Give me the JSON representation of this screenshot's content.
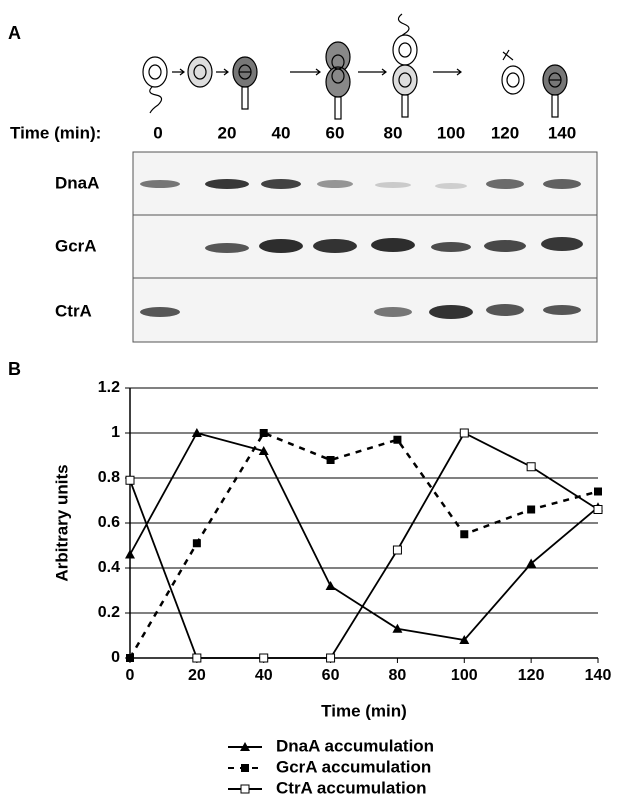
{
  "panel_a": {
    "label": "A",
    "time_label": "Time (min):",
    "times": [
      "0",
      "20",
      "40",
      "60",
      "80",
      "100",
      "120",
      "140"
    ],
    "rows": [
      "DnaA",
      "GcrA",
      "CtrA"
    ]
  },
  "chart_data": {
    "type": "line",
    "panel_label": "B",
    "x_label": "Time (min)",
    "y_label": "Arbitrary units",
    "x": [
      0,
      20,
      40,
      60,
      80,
      100,
      120,
      140
    ],
    "xlim": [
      0,
      140
    ],
    "xticks": [
      0,
      20,
      40,
      60,
      80,
      100,
      120,
      140
    ],
    "ylim": [
      0,
      1.2
    ],
    "yticks": [
      0,
      0.2,
      0.4,
      0.6,
      0.8,
      1,
      1.2
    ],
    "grid": true,
    "series": [
      {
        "name": "DnaA accumulation",
        "color": "#000000",
        "marker": "triangle",
        "line_style": "solid",
        "values": [
          0.46,
          1.0,
          0.92,
          0.32,
          0.13,
          0.08,
          0.42,
          0.67
        ]
      },
      {
        "name": "GcrA accumulation",
        "color": "#000000",
        "marker": "filled-square",
        "line_style": "dashed",
        "values": [
          0,
          0.51,
          1.0,
          0.88,
          0.97,
          0.55,
          0.66,
          0.74
        ]
      },
      {
        "name": "CtrA accumulation",
        "color": "#000000",
        "marker": "open-square",
        "line_style": "solid",
        "values": [
          0.79,
          0,
          0,
          0,
          0.48,
          1.0,
          0.85,
          0.66
        ]
      }
    ]
  }
}
